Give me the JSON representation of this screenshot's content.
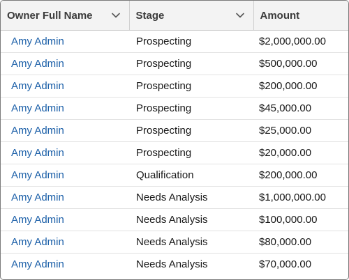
{
  "columns": {
    "owner": "Owner Full Name",
    "stage": "Stage",
    "amount": "Amount"
  },
  "icons": {
    "sort_menu": "chevron-down-icon"
  },
  "colors": {
    "link": "#1b5fa8",
    "header_bg": "#f3f3f3"
  },
  "rows": [
    {
      "owner": "Amy Admin",
      "stage": "Prospecting",
      "amount": "$2,000,000.00"
    },
    {
      "owner": "Amy Admin",
      "stage": "Prospecting",
      "amount": "$500,000.00"
    },
    {
      "owner": "Amy Admin",
      "stage": "Prospecting",
      "amount": "$200,000.00"
    },
    {
      "owner": "Amy Admin",
      "stage": "Prospecting",
      "amount": "$45,000.00"
    },
    {
      "owner": "Amy Admin",
      "stage": "Prospecting",
      "amount": "$25,000.00"
    },
    {
      "owner": "Amy Admin",
      "stage": "Prospecting",
      "amount": "$20,000.00"
    },
    {
      "owner": "Amy Admin",
      "stage": "Qualification",
      "amount": "$200,000.00"
    },
    {
      "owner": "Amy Admin",
      "stage": "Needs Analysis",
      "amount": "$1,000,000.00"
    },
    {
      "owner": "Amy Admin",
      "stage": "Needs Analysis",
      "amount": "$100,000.00"
    },
    {
      "owner": "Amy Admin",
      "stage": "Needs Analysis",
      "amount": "$80,000.00"
    },
    {
      "owner": "Amy Admin",
      "stage": "Needs Analysis",
      "amount": "$70,000.00"
    }
  ]
}
